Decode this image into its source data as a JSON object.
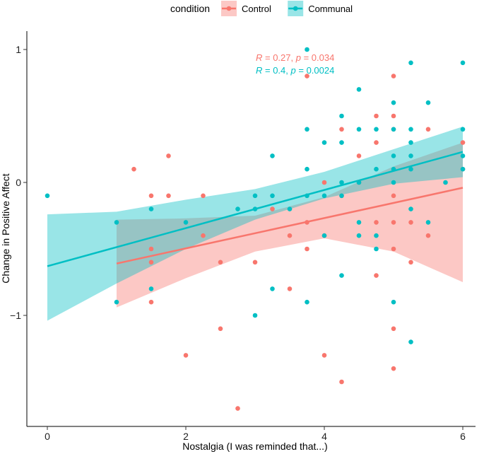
{
  "chart_data": {
    "type": "scatter",
    "title": "",
    "xlabel": "Nostalgia (I was reminded that...)",
    "ylabel": "Change in Positive Affect",
    "xlim": [
      0,
      6
    ],
    "ylim": [
      -1.85,
      1.1
    ],
    "x_ticks": [
      0,
      2,
      4,
      6
    ],
    "y_ticks": [
      -1,
      0,
      1
    ],
    "grid": false,
    "legend": {
      "title": "condition",
      "position": "top"
    },
    "series": [
      {
        "name": "Control",
        "color": "#F8766D",
        "stat_label": {
          "r": "0.27",
          "p": "0.034"
        },
        "fit": {
          "x": [
            1,
            6
          ],
          "y": [
            -0.61,
            -0.04
          ]
        },
        "ci": {
          "x": [
            1,
            2,
            3,
            4,
            5,
            6
          ],
          "lower": [
            -0.94,
            -0.72,
            -0.52,
            -0.42,
            -0.52,
            -0.75
          ],
          "upper": [
            -0.28,
            -0.27,
            -0.25,
            -0.11,
            0.12,
            0.3
          ]
        },
        "points": [
          [
            1.25,
            0.1
          ],
          [
            1.5,
            -0.1
          ],
          [
            1.5,
            -0.5
          ],
          [
            1.5,
            -0.6
          ],
          [
            1.5,
            -0.9
          ],
          [
            1.75,
            0.2
          ],
          [
            1.75,
            -0.1
          ],
          [
            2.0,
            -1.3
          ],
          [
            2.25,
            -0.1
          ],
          [
            2.25,
            -0.4
          ],
          [
            2.5,
            -0.6
          ],
          [
            2.5,
            -1.1
          ],
          [
            2.75,
            -1.7
          ],
          [
            3.0,
            -0.6
          ],
          [
            3.25,
            -0.2
          ],
          [
            3.5,
            -0.4
          ],
          [
            3.5,
            -0.8
          ],
          [
            3.75,
            0.8
          ],
          [
            3.75,
            -0.5
          ],
          [
            3.75,
            -0.3
          ],
          [
            4.0,
            0.0
          ],
          [
            4.0,
            -0.4
          ],
          [
            4.0,
            -1.3
          ],
          [
            4.25,
            0.4
          ],
          [
            4.25,
            -0.1
          ],
          [
            4.25,
            -1.5
          ],
          [
            4.5,
            0.2
          ],
          [
            4.5,
            0.0
          ],
          [
            4.75,
            0.5
          ],
          [
            4.75,
            0.3
          ],
          [
            4.75,
            -0.3
          ],
          [
            4.75,
            -0.7
          ],
          [
            5.0,
            0.8
          ],
          [
            5.0,
            0.5
          ],
          [
            5.0,
            0.4
          ],
          [
            5.0,
            -0.1
          ],
          [
            5.0,
            -0.3
          ],
          [
            5.0,
            -0.5
          ],
          [
            5.0,
            -1.1
          ],
          [
            5.0,
            -1.4
          ],
          [
            5.25,
            -0.3
          ],
          [
            5.25,
            -0.6
          ],
          [
            5.5,
            0.4
          ],
          [
            5.5,
            -0.4
          ],
          [
            6.0,
            0.3
          ],
          [
            6.0,
            0.1
          ]
        ]
      },
      {
        "name": "Communal",
        "color": "#00BFC4",
        "stat_label": {
          "r": "0.4",
          "p": "0.0024"
        },
        "fit": {
          "x": [
            0,
            6
          ],
          "y": [
            -0.63,
            0.23
          ]
        },
        "ci": {
          "x": [
            0,
            1,
            2,
            3,
            4,
            5,
            6
          ],
          "lower": [
            -1.04,
            -0.76,
            -0.5,
            -0.28,
            -0.12,
            -0.01,
            0.04
          ],
          "upper": [
            -0.24,
            -0.22,
            -0.13,
            -0.05,
            0.08,
            0.25,
            0.42
          ]
        },
        "points": [
          [
            0.0,
            -0.1
          ],
          [
            1.0,
            -0.3
          ],
          [
            1.0,
            -0.9
          ],
          [
            1.5,
            -0.2
          ],
          [
            1.5,
            -0.8
          ],
          [
            2.0,
            -0.3
          ],
          [
            2.75,
            -0.2
          ],
          [
            3.0,
            -0.1
          ],
          [
            3.0,
            -0.2
          ],
          [
            3.0,
            -1.0
          ],
          [
            3.25,
            0.2
          ],
          [
            3.25,
            -0.1
          ],
          [
            3.25,
            -0.8
          ],
          [
            3.5,
            -0.2
          ],
          [
            3.75,
            1.0
          ],
          [
            3.75,
            0.4
          ],
          [
            3.75,
            0.1
          ],
          [
            3.75,
            -0.1
          ],
          [
            3.75,
            -0.9
          ],
          [
            4.0,
            0.3
          ],
          [
            4.0,
            -0.1
          ],
          [
            4.0,
            -0.4
          ],
          [
            4.25,
            0.5
          ],
          [
            4.25,
            0.3
          ],
          [
            4.25,
            0.0
          ],
          [
            4.25,
            -0.1
          ],
          [
            4.25,
            -0.7
          ],
          [
            4.5,
            0.7
          ],
          [
            4.5,
            0.4
          ],
          [
            4.5,
            0.0
          ],
          [
            4.5,
            -0.3
          ],
          [
            4.5,
            -0.4
          ],
          [
            4.75,
            0.4
          ],
          [
            4.75,
            0.1
          ],
          [
            4.75,
            -0.4
          ],
          [
            4.75,
            -0.5
          ],
          [
            5.0,
            0.6
          ],
          [
            5.0,
            0.4
          ],
          [
            5.0,
            0.2
          ],
          [
            5.0,
            0.1
          ],
          [
            5.0,
            0.0
          ],
          [
            5.0,
            -0.9
          ],
          [
            5.25,
            0.9
          ],
          [
            5.25,
            0.4
          ],
          [
            5.25,
            0.3
          ],
          [
            5.25,
            0.2
          ],
          [
            5.25,
            0.1
          ],
          [
            5.25,
            -0.2
          ],
          [
            5.25,
            -1.2
          ],
          [
            5.5,
            0.6
          ],
          [
            5.5,
            -0.3
          ],
          [
            5.75,
            0.0
          ],
          [
            6.0,
            0.9
          ],
          [
            6.0,
            0.4
          ],
          [
            6.0,
            0.2
          ],
          [
            6.0,
            0.1
          ]
        ]
      }
    ]
  }
}
